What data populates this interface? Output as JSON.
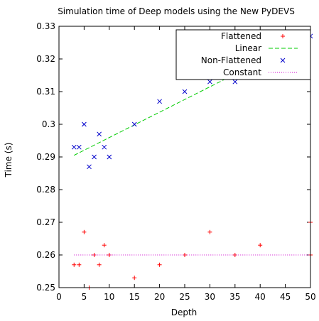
{
  "chart_data": {
    "type": "scatter",
    "title": "Simulation time of Deep models using the New PyDEVS",
    "xlabel": "Depth",
    "ylabel": "Time (s)",
    "xlim": [
      0,
      50
    ],
    "ylim": [
      0.25,
      0.33
    ],
    "xticks": [
      "0",
      "5",
      "10",
      "15",
      "20",
      "25",
      "30",
      "35",
      "40",
      "45",
      "50"
    ],
    "yticks": [
      "0.25",
      "0.26",
      "0.27",
      "0.28",
      "0.29",
      "0.3",
      "0.31",
      "0.32",
      "0.33"
    ],
    "legend_position": "top-right",
    "grid": false,
    "series": [
      {
        "name": "Flattened",
        "kind": "points",
        "marker": "plus",
        "color": "#ff0000",
        "x": [
          3,
          4,
          5,
          6,
          7,
          8,
          9,
          10,
          15,
          20,
          25,
          30,
          35,
          40,
          50,
          50
        ],
        "y": [
          0.257,
          0.257,
          0.267,
          0.25,
          0.26,
          0.257,
          0.263,
          0.26,
          0.253,
          0.257,
          0.26,
          0.267,
          0.26,
          0.263,
          0.27,
          0.26
        ]
      },
      {
        "name": "Linear",
        "kind": "line",
        "dash": "dashed",
        "color": "#00cc00",
        "x": [
          3,
          50
        ],
        "y": [
          0.2905,
          0.327
        ]
      },
      {
        "name": "Non-Flattened",
        "kind": "points",
        "marker": "cross",
        "color": "#0000cc",
        "x": [
          3,
          4,
          5,
          6,
          7,
          8,
          9,
          10,
          15,
          20,
          25,
          30,
          35,
          40,
          50
        ],
        "y": [
          0.293,
          0.293,
          0.3,
          0.287,
          0.29,
          0.297,
          0.293,
          0.29,
          0.3,
          0.307,
          0.31,
          0.313,
          0.313,
          0.323,
          0.327
        ]
      },
      {
        "name": "Constant",
        "kind": "line",
        "dash": "dotted",
        "color": "#cc00cc",
        "x": [
          3,
          50
        ],
        "y": [
          0.26,
          0.26
        ]
      }
    ]
  }
}
